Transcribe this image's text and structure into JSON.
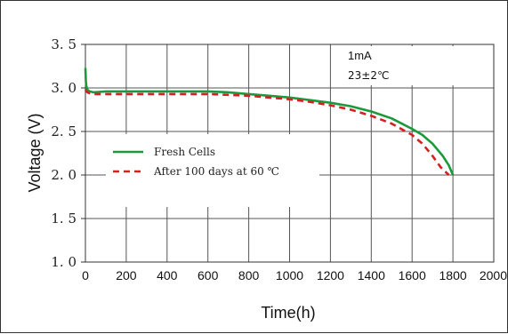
{
  "chart_data": {
    "type": "line",
    "title": "",
    "xlabel": "Time(h)",
    "ylabel": "Voltage (V)",
    "xlim": [
      0,
      2000
    ],
    "ylim": [
      1.0,
      3.5
    ],
    "x_ticks": [
      "0",
      "200",
      "400",
      "600",
      "800",
      "1000",
      "1200",
      "1400",
      "1600",
      "1800",
      "2000"
    ],
    "y_ticks": [
      "1. 0",
      "1. 5",
      "2. 0",
      "2. 5",
      "3. 0",
      "3. 5"
    ],
    "x_tick_values": [
      0,
      200,
      400,
      600,
      800,
      1000,
      1200,
      1400,
      1600,
      1800,
      2000
    ],
    "y_tick_values": [
      1.0,
      1.5,
      2.0,
      2.5,
      3.0,
      3.5
    ],
    "grid": true,
    "legend_position": "middle-left",
    "annotations": {
      "current": "1mA",
      "temperature": "23±2℃"
    },
    "series": [
      {
        "name": "Fresh Cells",
        "color": "#1a9a3a",
        "style": "solid",
        "x": [
          0,
          2,
          5,
          10,
          20,
          40,
          100,
          200,
          300,
          400,
          500,
          600,
          700,
          800,
          900,
          1000,
          1100,
          1200,
          1300,
          1400,
          1500,
          1600,
          1650,
          1700,
          1750,
          1780,
          1800
        ],
        "y": [
          3.23,
          3.08,
          3.02,
          2.98,
          2.96,
          2.95,
          2.96,
          2.96,
          2.96,
          2.96,
          2.96,
          2.96,
          2.95,
          2.93,
          2.91,
          2.89,
          2.86,
          2.83,
          2.79,
          2.73,
          2.65,
          2.53,
          2.46,
          2.36,
          2.22,
          2.11,
          2.0
        ]
      },
      {
        "name": "After 100 days at 60 ℃",
        "color": "#d42020",
        "style": "dashed",
        "x": [
          0,
          5,
          10,
          20,
          40,
          100,
          200,
          300,
          400,
          500,
          600,
          700,
          800,
          900,
          1000,
          1100,
          1200,
          1300,
          1400,
          1500,
          1600,
          1650,
          1700,
          1740,
          1780
        ],
        "y": [
          2.98,
          2.96,
          2.95,
          2.94,
          2.93,
          2.93,
          2.93,
          2.93,
          2.93,
          2.93,
          2.93,
          2.92,
          2.91,
          2.89,
          2.87,
          2.84,
          2.8,
          2.75,
          2.68,
          2.59,
          2.46,
          2.36,
          2.22,
          2.09,
          2.0
        ]
      }
    ]
  }
}
